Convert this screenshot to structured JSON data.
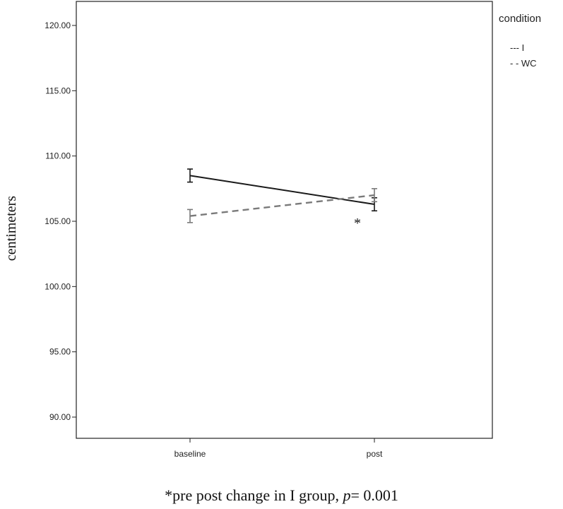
{
  "chart_data": {
    "type": "line",
    "categories": [
      "baseline",
      "post"
    ],
    "ylabel": "centimeters",
    "xlabel": "",
    "ylim": [
      89,
      121
    ],
    "yticks": [
      "90.00",
      "95.00",
      "100.00",
      "105.00",
      "110.00",
      "115.00",
      "120.00"
    ],
    "grid": false,
    "legend": {
      "title": "condition",
      "placement": "top-right, outside plot",
      "entries": [
        "--- I",
        "- - WC"
      ]
    },
    "series": [
      {
        "name": "I",
        "style": "solid",
        "color": "#1a1a1a",
        "values": [
          108.5,
          106.3
        ],
        "error_low": [
          108.0,
          105.8
        ],
        "error_high": [
          109.0,
          106.8
        ]
      },
      {
        "name": "WC",
        "style": "dashed",
        "color": "#7a7a7a",
        "values": [
          105.4,
          107.0
        ],
        "error_low": [
          104.9,
          106.5
        ],
        "error_high": [
          105.9,
          107.5
        ]
      }
    ],
    "annotation": "*",
    "footnote": {
      "prefix": "*pre post change in I group, ",
      "p_symbol": "p",
      "suffix": "= 0.001"
    }
  }
}
